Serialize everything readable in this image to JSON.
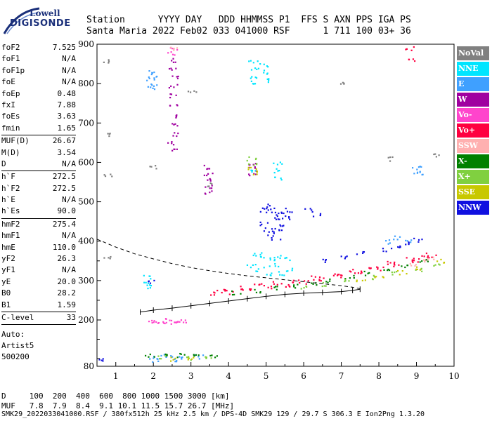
{
  "logo": {
    "line1": "Lowell",
    "line2": "DIGISONDE"
  },
  "header": {
    "line1": "Station      YYYY DAY   DDD HHMMSS P1  FFS S AXN PPS IGA PS",
    "line2": "Santa Maria 2022 Feb02 033 041000 RSF      1 711 100 03+ 36"
  },
  "params": [
    {
      "name": "foF2",
      "value": "7.525"
    },
    {
      "name": "foF1",
      "value": "N/A"
    },
    {
      "name": "foF1p",
      "value": "N/A"
    },
    {
      "name": "foE",
      "value": "N/A"
    },
    {
      "name": "foEp",
      "value": "0.48"
    },
    {
      "name": "fxI",
      "value": "7.88"
    },
    {
      "name": "foEs",
      "value": "3.63"
    },
    {
      "name": "fmin",
      "value": "1.65"
    },
    {
      "name": "MUF(D)",
      "value": "26.67"
    },
    {
      "name": "M(D)",
      "value": "3.54"
    },
    {
      "name": "D",
      "value": "N/A"
    },
    {
      "name": "h`F",
      "value": "272.5"
    },
    {
      "name": "h`F2",
      "value": "272.5"
    },
    {
      "name": "h`E",
      "value": "N/A"
    },
    {
      "name": "h`Es",
      "value": "90.0"
    },
    {
      "name": "hmF2",
      "value": "275.4"
    },
    {
      "name": "hmF1",
      "value": "N/A"
    },
    {
      "name": "hmE",
      "value": "110.0"
    },
    {
      "name": "yF2",
      "value": "26.3"
    },
    {
      "name": "yF1",
      "value": "N/A"
    },
    {
      "name": "yE",
      "value": "20.0"
    },
    {
      "name": "B0",
      "value": "28.2"
    },
    {
      "name": "B1",
      "value": "1.59"
    },
    {
      "name": "C-level",
      "value": "33"
    }
  ],
  "auto": [
    "Auto:",
    "Artist5",
    "500200"
  ],
  "legend": [
    {
      "label": "NoVal",
      "bg": "#808080",
      "fg": "#ffffff"
    },
    {
      "label": "NNE",
      "bg": "#00e5ff",
      "fg": "#ffffff"
    },
    {
      "label": "E",
      "bg": "#3fa0ff",
      "fg": "#ffffff"
    },
    {
      "label": "W",
      "bg": "#a000a0",
      "fg": "#ffffff"
    },
    {
      "label": "Vo-",
      "bg": "#ff44cc",
      "fg": "#ffffff"
    },
    {
      "label": "Vo+",
      "bg": "#ff0040",
      "fg": "#ffffff"
    },
    {
      "label": "SSW",
      "bg": "#ffb0b0",
      "fg": "#ffffff"
    },
    {
      "label": "X-",
      "bg": "#008000",
      "fg": "#ffffff"
    },
    {
      "label": "X+",
      "bg": "#80d040",
      "fg": "#ffffff"
    },
    {
      "label": "SSE",
      "bg": "#c8c800",
      "fg": "#ffffff"
    },
    {
      "label": "NNW",
      "bg": "#1010e0",
      "fg": "#ffffff"
    }
  ],
  "footer": {
    "line1": "D     100  200  400  600  800 1000 1500 3000 [km]",
    "line2": "MUF   7.8  7.9  8.4  9.1 10.1 11.5 15.7 26.7 [MHz]",
    "line3": "SMK29_2022033041000.RSF / 380fx512h 25 kHz 2.5 km / DPS-4D SMK29 129 / 29.7 S 306.3 E Ion2Png 1.3.20"
  },
  "chart_data": {
    "type": "scatter",
    "title": "",
    "xlabel": "",
    "ylabel": "",
    "xlim": [
      0.5,
      10
    ],
    "ylim": [
      80,
      900
    ],
    "xticks": [
      1,
      2,
      3,
      4,
      5,
      6,
      7,
      8,
      9,
      10
    ],
    "yticks": [
      80,
      200,
      300,
      400,
      500,
      600,
      700,
      800,
      900
    ],
    "yticks_minor": [
      100,
      150,
      250,
      350
    ],
    "virtual_height_trace": {
      "x": [
        1.65,
        2.0,
        2.5,
        3.0,
        3.5,
        4.0,
        4.5,
        5.0,
        5.5,
        6.0,
        6.5,
        7.0,
        7.3,
        7.5
      ],
      "y": [
        220,
        225,
        230,
        236,
        242,
        248,
        254,
        260,
        265,
        268,
        270,
        272,
        275,
        278
      ]
    },
    "true_height_profile": {
      "x": [
        0.5,
        1.0,
        1.5,
        2.0,
        2.5,
        3.0,
        3.5,
        4.0,
        4.5,
        5.0,
        5.5,
        6.0,
        6.5,
        7.0,
        7.3,
        7.525
      ],
      "y": [
        405,
        385,
        368,
        355,
        343,
        333,
        325,
        318,
        312,
        307,
        302,
        297,
        292,
        287,
        283,
        279
      ]
    },
    "echo_clusters": [
      {
        "name": "NoVal",
        "color": "#808080",
        "points": [
          [
            0.75,
            860
          ],
          [
            0.75,
            672
          ],
          [
            0.78,
            570
          ],
          [
            1.95,
            590
          ],
          [
            3.0,
            780
          ],
          [
            3.45,
            545
          ],
          [
            7.0,
            800
          ],
          [
            8.3,
            610
          ],
          [
            9.5,
            620
          ],
          [
            0.8,
            360
          ]
        ]
      },
      {
        "name": "NNE",
        "color": "#00e5ff",
        "points": [
          [
            4.65,
            860
          ],
          [
            4.65,
            840
          ],
          [
            4.68,
            820
          ],
          [
            4.7,
            805
          ],
          [
            4.95,
            850
          ],
          [
            4.98,
            830
          ],
          [
            5.0,
            810
          ],
          [
            4.65,
            580
          ],
          [
            5.28,
            600
          ],
          [
            5.3,
            580
          ],
          [
            5.32,
            560
          ],
          [
            4.75,
            370
          ],
          [
            4.9,
            365
          ],
          [
            5.15,
            355
          ],
          [
            5.3,
            360
          ],
          [
            5.5,
            358
          ],
          [
            4.6,
            340
          ],
          [
            4.8,
            330
          ],
          [
            5.05,
            320
          ],
          [
            5.2,
            340
          ],
          [
            5.4,
            320
          ],
          [
            5.6,
            330
          ],
          [
            1.82,
            310
          ],
          [
            1.85,
            295
          ],
          [
            1.9,
            285
          ]
        ]
      },
      {
        "name": "E",
        "color": "#3fa0ff",
        "points": [
          [
            1.92,
            830
          ],
          [
            1.93,
            815
          ],
          [
            1.95,
            800
          ],
          [
            1.96,
            790
          ],
          [
            1.98,
            820
          ],
          [
            8.95,
            580
          ],
          [
            9.0,
            590
          ],
          [
            9.02,
            570
          ],
          [
            8.2,
            400
          ],
          [
            8.5,
            410
          ],
          [
            8.8,
            400
          ],
          [
            2.1,
            105
          ],
          [
            2.4,
            108
          ],
          [
            2.8,
            104
          ],
          [
            3.2,
            106
          ],
          [
            2.0,
            98
          ],
          [
            2.6,
            96
          ]
        ]
      },
      {
        "name": "W",
        "color": "#a000a0",
        "points": [
          [
            2.5,
            860
          ],
          [
            2.5,
            840
          ],
          [
            2.52,
            820
          ],
          [
            2.5,
            795
          ],
          [
            2.52,
            770
          ],
          [
            2.5,
            745
          ],
          [
            2.53,
            720
          ],
          [
            2.5,
            695
          ],
          [
            2.52,
            672
          ],
          [
            2.5,
            650
          ],
          [
            2.52,
            630
          ],
          [
            3.45,
            590
          ],
          [
            3.45,
            572
          ],
          [
            3.47,
            555
          ],
          [
            3.45,
            540
          ],
          [
            3.46,
            525
          ],
          [
            4.6,
            600
          ],
          [
            4.62,
            585
          ],
          [
            4.6,
            570
          ]
        ]
      },
      {
        "name": "Vo-",
        "color": "#ff44cc",
        "points": [
          [
            2.5,
            890
          ],
          [
            2.5,
            878
          ],
          [
            1.95,
            200
          ],
          [
            2.2,
            200
          ],
          [
            2.5,
            198
          ],
          [
            2.8,
            200
          ],
          [
            2.0,
            196
          ],
          [
            2.35,
            196
          ],
          [
            2.65,
            196
          ]
        ]
      },
      {
        "name": "Vo+",
        "color": "#ff0040",
        "points": [
          [
            8.8,
            890
          ],
          [
            8.82,
            862
          ],
          [
            3.5,
            268
          ],
          [
            4.0,
            272
          ],
          [
            4.5,
            278
          ],
          [
            5.0,
            284
          ],
          [
            5.5,
            290
          ],
          [
            6.0,
            296
          ],
          [
            6.5,
            305
          ],
          [
            7.0,
            312
          ],
          [
            7.5,
            322
          ],
          [
            8.0,
            332
          ],
          [
            8.5,
            342
          ],
          [
            9.0,
            352
          ],
          [
            9.4,
            362
          ],
          [
            3.8,
            275
          ],
          [
            4.3,
            282
          ],
          [
            4.8,
            288
          ],
          [
            5.3,
            294
          ],
          [
            5.8,
            300
          ],
          [
            6.3,
            308
          ],
          [
            6.8,
            316
          ],
          [
            7.3,
            325
          ],
          [
            7.8,
            335
          ],
          [
            8.3,
            345
          ],
          [
            8.8,
            356
          ],
          [
            9.2,
            366
          ]
        ]
      },
      {
        "name": "SSW",
        "color": "#ffb0b0",
        "points": [
          [
            2.5,
            890
          ],
          [
            9.4,
            360
          ],
          [
            9.3,
            350
          ],
          [
            8.9,
            340
          ]
        ]
      },
      {
        "name": "X-",
        "color": "#008000",
        "points": [
          [
            4.2,
            270
          ],
          [
            4.7,
            276
          ],
          [
            5.2,
            282
          ],
          [
            5.7,
            288
          ],
          [
            6.2,
            294
          ],
          [
            6.7,
            302
          ],
          [
            7.2,
            310
          ],
          [
            7.7,
            320
          ],
          [
            8.2,
            330
          ],
          [
            8.7,
            340
          ],
          [
            9.2,
            350
          ],
          [
            1.9,
            110
          ],
          [
            2.3,
            112
          ],
          [
            2.7,
            110
          ],
          [
            3.1,
            112
          ],
          [
            3.6,
            108
          ]
        ]
      },
      {
        "name": "X+",
        "color": "#80d040",
        "points": [
          [
            4.6,
            610
          ],
          [
            4.62,
            598
          ],
          [
            6.0,
            285
          ],
          [
            6.6,
            292
          ],
          [
            7.2,
            300
          ],
          [
            7.8,
            310
          ],
          [
            8.4,
            320
          ],
          [
            9.0,
            330
          ],
          [
            9.5,
            342
          ],
          [
            2.2,
            104
          ],
          [
            2.9,
            102
          ],
          [
            3.4,
            104
          ]
        ]
      },
      {
        "name": "SSE",
        "color": "#c8c800",
        "points": [
          [
            4.6,
            588
          ],
          [
            4.63,
            575
          ],
          [
            7.5,
            300
          ],
          [
            8.0,
            310
          ],
          [
            8.6,
            322
          ],
          [
            9.1,
            332
          ],
          [
            9.6,
            350
          ],
          [
            2.5,
            100
          ],
          [
            3.0,
            100
          ]
        ]
      },
      {
        "name": "NNW",
        "color": "#1010e0",
        "points": [
          [
            5.0,
            490
          ],
          [
            5.1,
            480
          ],
          [
            5.2,
            470
          ],
          [
            5.3,
            460
          ],
          [
            5.4,
            470
          ],
          [
            5.5,
            460
          ],
          [
            4.95,
            445
          ],
          [
            5.05,
            430
          ],
          [
            5.15,
            420
          ],
          [
            5.25,
            410
          ],
          [
            5.35,
            430
          ],
          [
            5.45,
            440
          ],
          [
            4.9,
            480
          ],
          [
            5.6,
            480
          ],
          [
            6.1,
            480
          ],
          [
            6.3,
            470
          ],
          [
            1.95,
            300
          ],
          [
            8.5,
            385
          ],
          [
            8.8,
            395
          ],
          [
            9.0,
            405
          ],
          [
            8.2,
            380
          ],
          [
            7.5,
            370
          ],
          [
            7.0,
            360
          ],
          [
            6.5,
            350
          ],
          [
            0.55,
            100
          ]
        ]
      }
    ],
    "scatter_spread": {
      "nominal": true
    }
  }
}
